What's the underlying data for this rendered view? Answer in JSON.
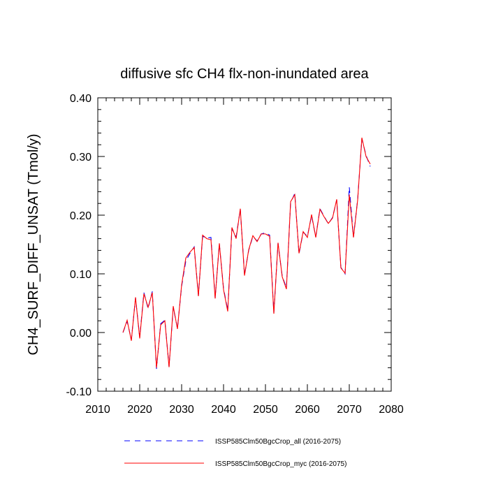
{
  "chart_data": {
    "type": "line",
    "title": "diffusive sfc CH4 flx-non-inundated area",
    "xlabel": "",
    "ylabel": "CH4_SURF_DIFF_UNSAT  (Tmol/y)",
    "xlim": [
      2010,
      2080
    ],
    "ylim": [
      -0.1,
      0.4
    ],
    "x_ticks": [
      2010,
      2020,
      2030,
      2040,
      2050,
      2060,
      2070,
      2080
    ],
    "x_tick_labels": [
      "2010",
      "2020",
      "2030",
      "2040",
      "2050",
      "2060",
      "2070",
      "2080"
    ],
    "y_ticks": [
      -0.1,
      0.0,
      0.1,
      0.2,
      0.3,
      0.4
    ],
    "y_tick_labels": [
      "-0.10",
      "0.00",
      "0.10",
      "0.20",
      "0.30",
      "0.40"
    ],
    "grid": false,
    "legend_position": "bottom",
    "x": [
      2016,
      2017,
      2018,
      2019,
      2020,
      2021,
      2022,
      2023,
      2024,
      2025,
      2026,
      2027,
      2028,
      2029,
      2030,
      2031,
      2032,
      2033,
      2034,
      2035,
      2036,
      2037,
      2038,
      2039,
      2040,
      2041,
      2042,
      2043,
      2044,
      2045,
      2046,
      2047,
      2048,
      2049,
      2050,
      2051,
      2052,
      2053,
      2054,
      2055,
      2056,
      2057,
      2058,
      2059,
      2060,
      2061,
      2062,
      2063,
      2064,
      2065,
      2066,
      2067,
      2068,
      2069,
      2070,
      2071,
      2072,
      2073,
      2074,
      2075
    ],
    "series": [
      {
        "name": "ISSP585Clm50BgcCrop_all (2016-2075)",
        "color": "#0000ff",
        "dash": "dashed",
        "values": [
          0.0,
          0.019,
          -0.012,
          0.059,
          -0.008,
          0.068,
          0.041,
          0.07,
          -0.062,
          0.015,
          0.021,
          -0.058,
          0.043,
          0.007,
          0.079,
          0.122,
          0.135,
          0.146,
          0.063,
          0.164,
          0.161,
          0.162,
          0.059,
          0.151,
          0.075,
          0.038,
          0.177,
          0.163,
          0.21,
          0.098,
          0.14,
          0.164,
          0.156,
          0.168,
          0.17,
          0.166,
          0.034,
          0.152,
          0.096,
          0.076,
          0.221,
          0.237,
          0.134,
          0.171,
          0.164,
          0.199,
          0.163,
          0.211,
          0.198,
          0.185,
          0.196,
          0.226,
          0.111,
          0.1,
          0.248,
          0.163,
          0.227,
          0.33,
          0.302,
          0.283
        ]
      },
      {
        "name": "ISSP585Clm50BgcCrop_myc (2016-2075)",
        "color": "#ff0000",
        "dash": "solid",
        "values": [
          0.0,
          0.021,
          -0.014,
          0.06,
          -0.01,
          0.066,
          0.043,
          0.068,
          -0.06,
          0.013,
          0.02,
          -0.059,
          0.045,
          0.006,
          0.081,
          0.127,
          0.137,
          0.145,
          0.062,
          0.166,
          0.16,
          0.158,
          0.058,
          0.152,
          0.073,
          0.036,
          0.179,
          0.16,
          0.211,
          0.097,
          0.141,
          0.165,
          0.155,
          0.168,
          0.168,
          0.164,
          0.032,
          0.153,
          0.095,
          0.074,
          0.223,
          0.235,
          0.135,
          0.172,
          0.162,
          0.201,
          0.162,
          0.21,
          0.197,
          0.186,
          0.195,
          0.227,
          0.11,
          0.101,
          0.235,
          0.162,
          0.226,
          0.332,
          0.3,
          0.287
        ]
      }
    ]
  }
}
